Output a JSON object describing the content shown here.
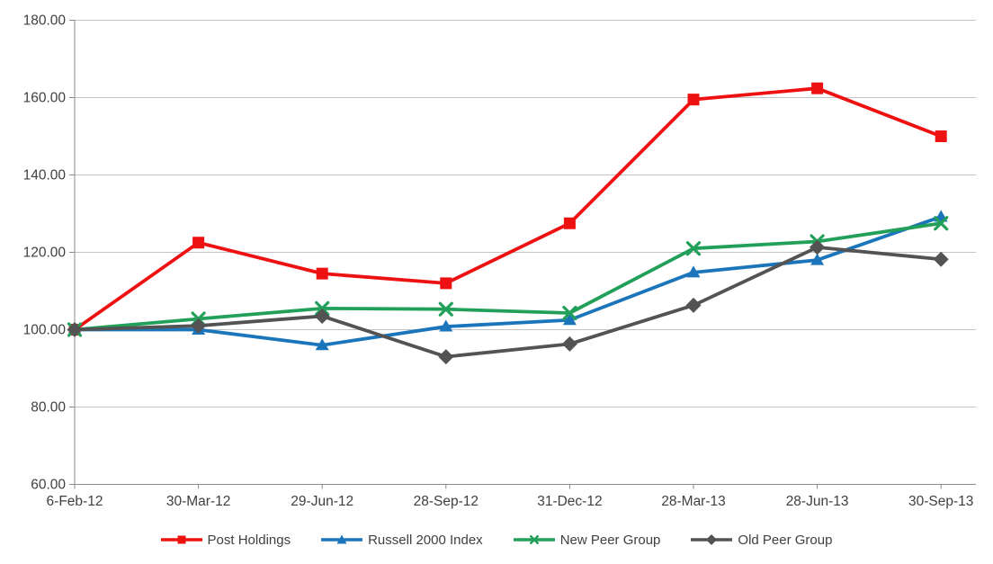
{
  "chart_data": {
    "type": "line",
    "title": "",
    "categories": [
      "6-Feb-12",
      "30-Mar-12",
      "29-Jun-12",
      "28-Sep-12",
      "31-Dec-12",
      "28-Mar-13",
      "28-Jun-13",
      "30-Sep-13"
    ],
    "series": [
      {
        "name": "Post Holdings",
        "marker": "square",
        "color": "#ee1111",
        "values": [
          100,
          122.5,
          114.5,
          112.0,
          127.5,
          159.5,
          162.4,
          150.0
        ]
      },
      {
        "name": "Russell 2000 Index",
        "marker": "triangle",
        "color": "#1b75bb",
        "values": [
          100,
          100.0,
          96.0,
          100.8,
          102.5,
          114.8,
          118.0,
          129.2
        ]
      },
      {
        "name": "New Peer Group",
        "marker": "x",
        "color": "#22a05a",
        "values": [
          100,
          102.8,
          105.5,
          105.3,
          104.3,
          121.0,
          122.8,
          127.5
        ]
      },
      {
        "name": "Old Peer Group",
        "marker": "diamond",
        "color": "#535353",
        "values": [
          100,
          101.0,
          103.5,
          93.0,
          96.3,
          106.3,
          121.3,
          118.2
        ]
      }
    ],
    "ylim": [
      60,
      180
    ],
    "yticks": [
      {
        "value": 180,
        "label": "180.00"
      },
      {
        "value": 160,
        "label": "160.00"
      },
      {
        "value": 140,
        "label": "140.00"
      },
      {
        "value": 120,
        "label": "120.00"
      },
      {
        "value": 100,
        "label": "100.00"
      },
      {
        "value": 80,
        "label": "80.00"
      },
      {
        "value": 60,
        "label": "60.00"
      }
    ],
    "grid": true,
    "legend_position": "bottom",
    "colors": {
      "background": "#ffffff",
      "gridline": "#c3c3c3",
      "axis": "#898989",
      "label": "#3f3f3f"
    }
  }
}
